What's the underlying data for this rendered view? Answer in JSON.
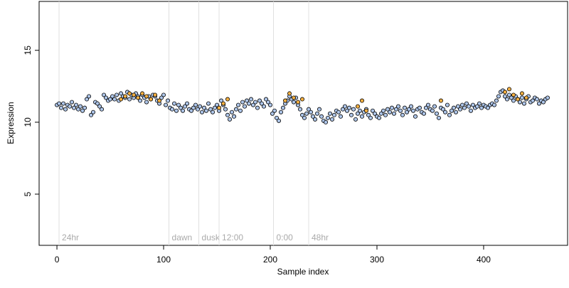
{
  "chart_data": {
    "type": "scatter",
    "x_label": "Sample index",
    "y_label": "Expression",
    "xlim": [
      -16.7,
      478.7
    ],
    "ylim": [
      1.44,
      18.4
    ],
    "xticks": [
      0,
      100,
      200,
      300,
      400
    ],
    "yticks": [
      5,
      10,
      15
    ],
    "annotations": [
      {
        "x": 2,
        "label": "24hr"
      },
      {
        "x": 105,
        "label": "dawn"
      },
      {
        "x": 133,
        "label": "dusk"
      },
      {
        "x": 152,
        "label": "12:00"
      },
      {
        "x": 203,
        "label": "0:00"
      },
      {
        "x": 236,
        "label": "48hr"
      }
    ],
    "series": [
      {
        "color": "#aec6ea",
        "x": [
          0,
          2,
          4,
          6,
          8,
          10,
          12,
          14,
          16,
          18,
          20,
          22,
          24,
          26,
          28,
          30,
          32,
          34,
          36,
          38,
          40,
          42,
          44,
          46,
          48,
          50,
          52,
          54,
          56,
          58,
          60,
          62,
          64,
          66,
          68,
          70,
          72,
          74,
          76,
          78,
          80,
          82,
          84,
          86,
          88,
          90,
          92,
          94,
          96,
          98,
          100,
          102,
          104,
          106,
          108,
          110,
          112,
          114,
          116,
          118,
          120,
          122,
          124,
          126,
          128,
          130,
          132,
          134,
          136,
          138,
          140,
          142,
          144,
          146,
          148,
          150,
          152,
          154,
          156,
          158,
          160,
          162,
          164,
          166,
          168,
          170,
          172,
          174,
          176,
          178,
          180,
          182,
          184,
          186,
          188,
          190,
          192,
          194,
          196,
          198,
          200,
          202,
          204,
          206,
          208,
          210,
          212,
          214,
          216,
          218,
          220,
          222,
          224,
          226,
          228,
          230,
          232,
          234,
          236,
          238,
          240,
          242,
          244,
          246,
          248,
          250,
          252,
          254,
          256,
          258,
          260,
          262,
          264,
          266,
          268,
          270,
          272,
          274,
          276,
          278,
          280,
          282,
          284,
          286,
          288,
          290,
          292,
          294,
          296,
          298,
          300,
          302,
          304,
          306,
          308,
          310,
          312,
          314,
          316,
          318,
          320,
          322,
          324,
          326,
          328,
          330,
          332,
          334,
          336,
          338,
          340,
          342,
          344,
          346,
          348,
          350,
          352,
          354,
          356,
          358,
          360,
          362,
          364,
          366,
          368,
          370,
          372,
          374,
          376,
          378,
          380,
          382,
          384,
          386,
          388,
          390,
          392,
          394,
          396,
          398,
          400,
          402,
          404,
          406,
          408,
          410,
          412,
          414,
          416,
          418,
          420,
          422,
          424,
          426,
          428,
          430,
          432,
          434,
          436,
          438,
          440,
          442,
          444,
          446,
          448,
          450,
          452,
          454,
          456,
          458,
          460
        ],
        "values": [
          11.2,
          11.3,
          11.0,
          11.3,
          10.9,
          11.2,
          11.1,
          11.4,
          11.0,
          11.2,
          10.9,
          11.1,
          10.8,
          11.0,
          11.6,
          11.8,
          10.5,
          10.7,
          11.4,
          11.3,
          11.1,
          10.9,
          11.9,
          11.7,
          11.5,
          11.6,
          11.8,
          11.6,
          11.9,
          11.5,
          12.0,
          11.8,
          11.7,
          12.1,
          11.6,
          11.9,
          11.7,
          12.0,
          11.8,
          11.5,
          11.9,
          11.7,
          11.4,
          11.8,
          11.6,
          11.9,
          11.8,
          11.5,
          11.3,
          11.7,
          11.9,
          11.2,
          11.5,
          11.0,
          10.9,
          11.3,
          10.8,
          11.2,
          11.0,
          10.8,
          11.1,
          11.3,
          10.9,
          10.8,
          11.0,
          11.2,
          10.9,
          11.1,
          10.7,
          11.0,
          10.8,
          11.3,
          10.9,
          10.7,
          11.0,
          11.2,
          10.8,
          11.5,
          11.2,
          10.9,
          10.5,
          10.2,
          10.7,
          10.4,
          10.9,
          11.2,
          10.8,
          11.4,
          11.1,
          11.5,
          11.3,
          11.6,
          11.2,
          11.4,
          11.0,
          11.5,
          11.3,
          11.1,
          11.6,
          11.4,
          11.2,
          10.6,
          10.8,
          10.3,
          10.1,
          10.7,
          11.0,
          11.3,
          11.5,
          11.8,
          11.6,
          11.4,
          11.7,
          11.2,
          10.9,
          10.5,
          10.3,
          10.6,
          10.9,
          10.7,
          10.4,
          10.2,
          10.6,
          10.9,
          10.4,
          10.1,
          10.0,
          10.3,
          10.6,
          10.2,
          10.5,
          10.8,
          10.7,
          10.4,
          10.9,
          11.1,
          10.8,
          11.0,
          10.5,
          10.9,
          10.2,
          10.6,
          10.8,
          10.4,
          10.7,
          10.9,
          10.5,
          10.3,
          10.8,
          10.6,
          10.4,
          10.3,
          10.6,
          10.8,
          10.5,
          10.9,
          10.7,
          11.0,
          10.6,
          10.9,
          11.1,
          10.8,
          10.5,
          11.0,
          10.7,
          10.9,
          11.1,
          10.8,
          10.4,
          10.9,
          11.0,
          10.7,
          10.6,
          11.0,
          11.2,
          10.9,
          10.8,
          11.1,
          10.6,
          10.3,
          11.0,
          10.9,
          10.7,
          11.2,
          10.5,
          10.8,
          11.0,
          10.7,
          11.1,
          10.9,
          11.2,
          11.0,
          11.3,
          11.1,
          10.8,
          11.2,
          11.0,
          11.1,
          11.3,
          11.0,
          11.2,
          11.1,
          11.0,
          11.2,
          11.3,
          11.2,
          11.5,
          11.8,
          12.1,
          12.2,
          11.8,
          11.6,
          11.9,
          11.7,
          11.5,
          11.8,
          11.6,
          11.4,
          11.7,
          11.3,
          11.6,
          11.8,
          11.4,
          11.5,
          11.7,
          11.6,
          11.3,
          11.5,
          11.4,
          11.6,
          11.7
        ]
      },
      {
        "color": "#f5b041",
        "x": [
          60,
          64,
          68,
          72,
          76,
          80,
          84,
          88,
          92,
          96,
          152,
          156,
          160,
          214,
          218,
          222,
          226,
          230,
          282,
          286,
          290,
          360,
          420,
          424,
          428,
          432,
          436,
          440
        ],
        "values": [
          11.6,
          11.8,
          12.0,
          11.9,
          11.7,
          12.0,
          11.8,
          11.6,
          11.9,
          11.5,
          11.0,
          11.3,
          11.6,
          11.5,
          12.0,
          11.7,
          11.4,
          11.6,
          11.1,
          11.5,
          10.8,
          11.5,
          12.1,
          12.3,
          11.9,
          11.6,
          12.0,
          11.7
        ]
      }
    ]
  }
}
